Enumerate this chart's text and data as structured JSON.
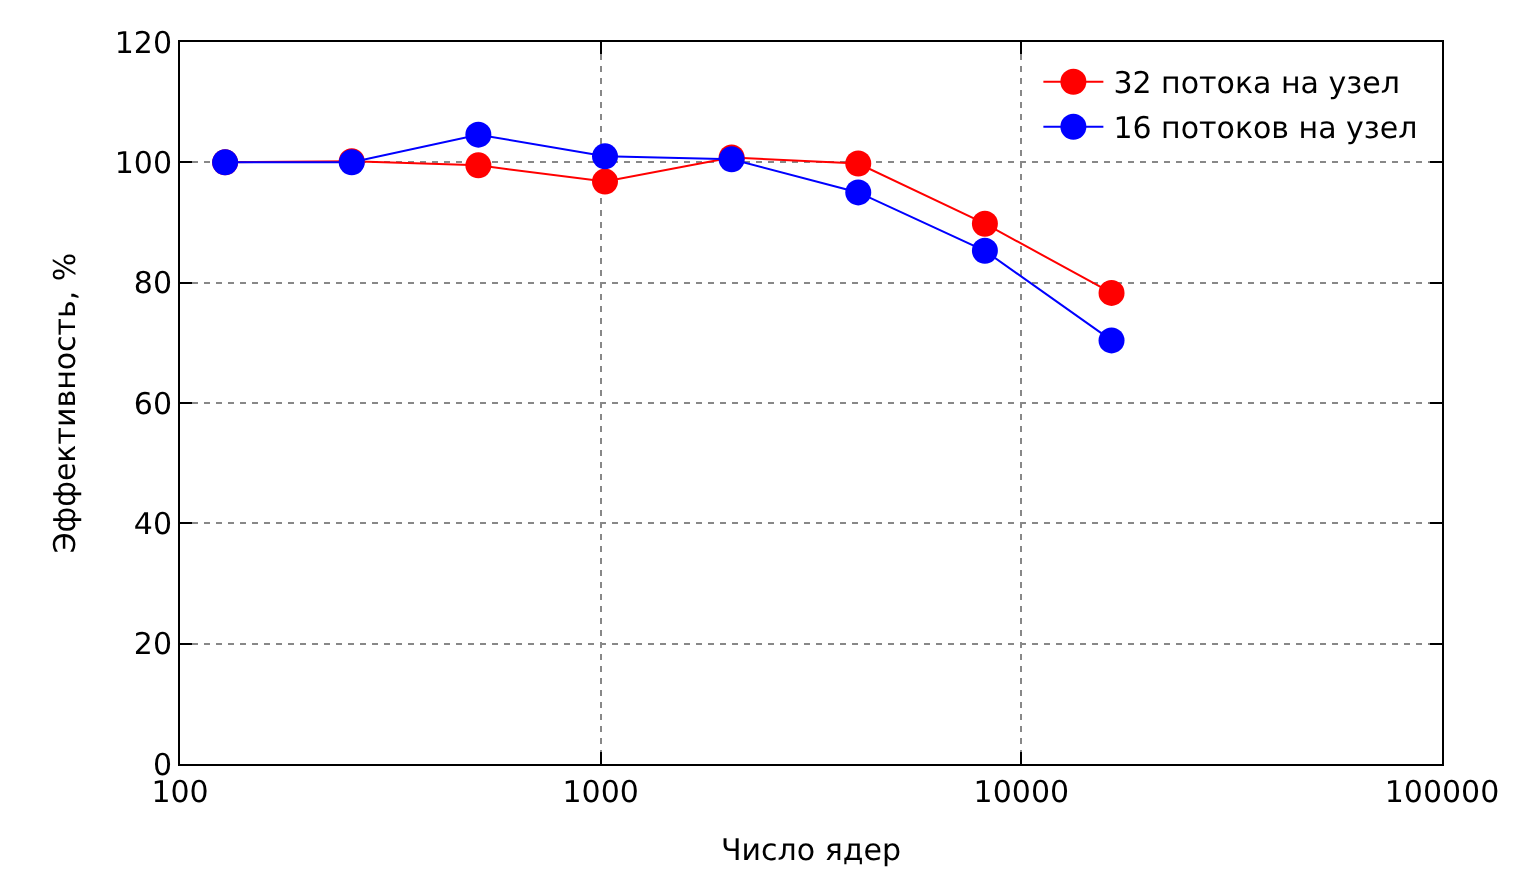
{
  "chart_data": {
    "type": "line",
    "xlabel": "Число ядер",
    "ylabel": "Эффективность, %",
    "x": [
      128,
      256,
      512,
      1024,
      2048,
      4096,
      8192,
      16384
    ],
    "series": [
      {
        "name": "32 потока на узел",
        "color": "#ff0000",
        "values": [
          100,
          100.2,
          99.5,
          96.8,
          100.8,
          99.8,
          89.8,
          78.3
        ]
      },
      {
        "name": "16 потоков на узел",
        "color": "#0000ff",
        "values": [
          100,
          100,
          104.6,
          101,
          100.5,
          95,
          85.3,
          70.4
        ]
      }
    ],
    "log": "x",
    "xlim": [
      100,
      100000
    ],
    "xticks": [
      100,
      1000,
      10000,
      100000
    ],
    "ylim": [
      0,
      120
    ],
    "yticks": [
      0,
      20,
      40,
      60,
      80,
      100,
      120
    ],
    "grid": true,
    "legend": "top right",
    "marker": "circle",
    "line_style": "solid"
  }
}
